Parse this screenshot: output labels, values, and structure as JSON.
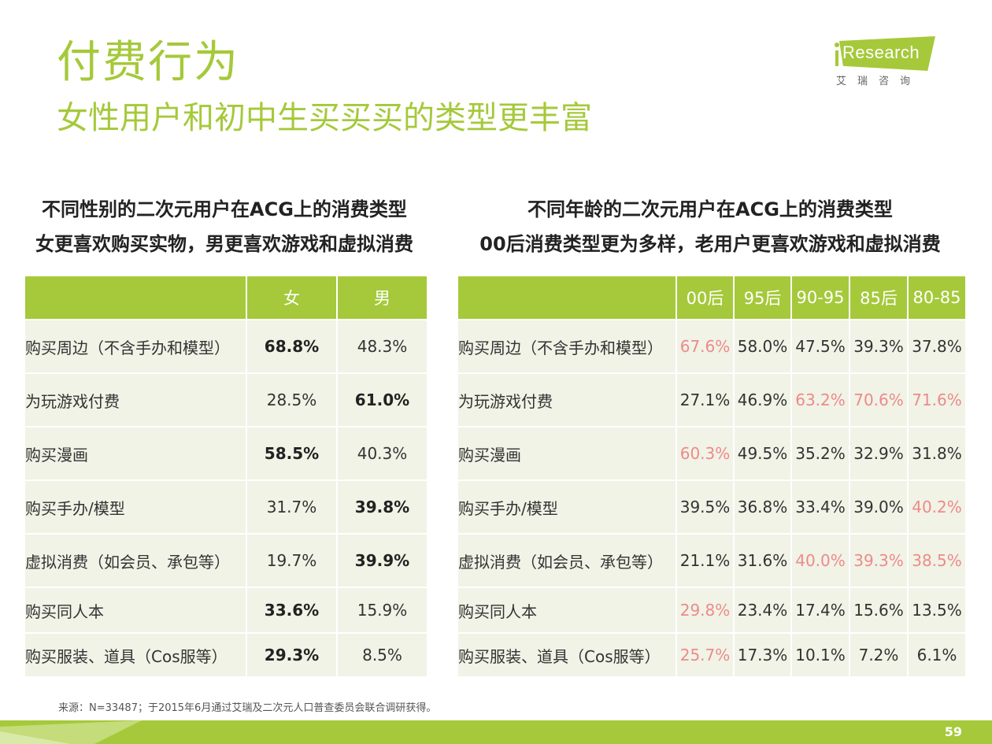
{
  "header": {
    "title": "付费行为",
    "subtitle": "女性用户和初中生买买买的类型更丰富"
  },
  "logo": {
    "text": "Research",
    "cn": "艾瑞咨询"
  },
  "left": {
    "title_line1": "不同性别的二次元用户在ACG上的消费类型",
    "title_line2": "女更喜欢购买实物，男更喜欢游戏和虚拟消费",
    "columns": [
      "",
      "女",
      "男"
    ],
    "rows": [
      {
        "label": "购买周边（不含手办和模型）",
        "values": [
          "68.8%",
          "48.3%"
        ],
        "bold": [
          true,
          false
        ]
      },
      {
        "label": "为玩游戏付费",
        "values": [
          "28.5%",
          "61.0%"
        ],
        "bold": [
          false,
          true
        ]
      },
      {
        "label": "购买漫画",
        "values": [
          "58.5%",
          "40.3%"
        ],
        "bold": [
          true,
          false
        ]
      },
      {
        "label": "购买手办/模型",
        "values": [
          "31.7%",
          "39.8%"
        ],
        "bold": [
          false,
          true
        ]
      },
      {
        "label": "虚拟消费（如会员、承包等）",
        "values": [
          "19.7%",
          "39.9%"
        ],
        "bold": [
          false,
          true
        ]
      },
      {
        "label": "购买同人本",
        "values": [
          "33.6%",
          "15.9%"
        ],
        "bold": [
          true,
          false
        ]
      },
      {
        "label": "购买服装、道具（Cos服等）",
        "values": [
          "29.3%",
          "8.5%"
        ],
        "bold": [
          true,
          false
        ]
      }
    ]
  },
  "right": {
    "title_line1": "不同年龄的二次元用户在ACG上的消费类型",
    "title_line2": "00后消费类型更为多样，老用户更喜欢游戏和虚拟消费",
    "columns": [
      "",
      "00后",
      "95后",
      "90-95",
      "85后",
      "80-85"
    ],
    "highlight_color": "#ee8a8a",
    "rows": [
      {
        "label": "购买周边（不含手办和模型）",
        "values": [
          "67.6%",
          "58.0%",
          "47.5%",
          "39.3%",
          "37.8%"
        ],
        "highlight": [
          true,
          false,
          false,
          false,
          false
        ]
      },
      {
        "label": "为玩游戏付费",
        "values": [
          "27.1%",
          "46.9%",
          "63.2%",
          "70.6%",
          "71.6%"
        ],
        "highlight": [
          false,
          false,
          true,
          true,
          true
        ]
      },
      {
        "label": "购买漫画",
        "values": [
          "60.3%",
          "49.5%",
          "35.2%",
          "32.9%",
          "31.8%"
        ],
        "highlight": [
          true,
          false,
          false,
          false,
          false
        ]
      },
      {
        "label": "购买手办/模型",
        "values": [
          "39.5%",
          "36.8%",
          "33.4%",
          "39.0%",
          "40.2%"
        ],
        "highlight": [
          false,
          false,
          false,
          false,
          true
        ]
      },
      {
        "label": "虚拟消费（如会员、承包等）",
        "values": [
          "21.1%",
          "31.6%",
          "40.0%",
          "39.3%",
          "38.5%"
        ],
        "highlight": [
          false,
          false,
          true,
          true,
          true
        ]
      },
      {
        "label": "购买同人本",
        "values": [
          "29.8%",
          "23.4%",
          "17.4%",
          "15.6%",
          "13.5%"
        ],
        "highlight": [
          true,
          false,
          false,
          false,
          false
        ]
      },
      {
        "label": "购买服装、道具（Cos服等）",
        "values": [
          "25.7%",
          "17.3%",
          "10.1%",
          "7.2%",
          "6.1%"
        ],
        "highlight": [
          true,
          false,
          false,
          false,
          false
        ]
      }
    ]
  },
  "footer": {
    "source": "来源：N=33487；于2015年6月通过艾瑞及二次元人口普查委员会联合调研获得。",
    "page": "59"
  },
  "colors": {
    "accent": "#a5c93a",
    "row_bg": "#f0f3e6"
  }
}
